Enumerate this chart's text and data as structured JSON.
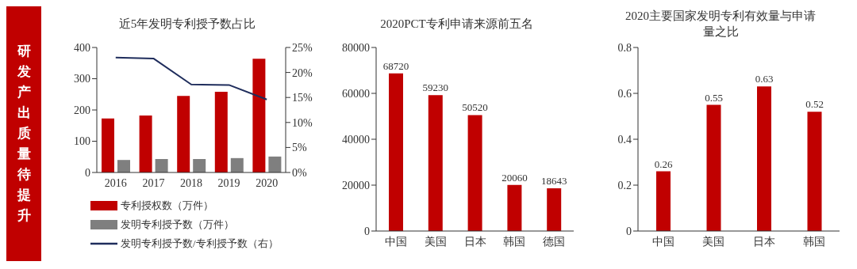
{
  "chart_data": [
    {
      "type": "other",
      "title": "研发产出质量待提升",
      "color": "#c00000"
    },
    {
      "type": "bar",
      "title": "近5年发明专利授予数占比",
      "categories": [
        "2016",
        "2017",
        "2018",
        "2019",
        "2020"
      ],
      "series": [
        {
          "name": "专利授权数（万件）",
          "color": "#c00000",
          "values": [
            173,
            182,
            245,
            258,
            364
          ]
        },
        {
          "name": "发明专利授予数（万件）",
          "color": "#7f7f7f",
          "values": [
            40,
            43,
            43,
            46,
            51
          ]
        },
        {
          "name": "发明专利授予数/专利授予数（右）",
          "type": "line",
          "axis": "y2",
          "color": "#1f2d5c",
          "values": [
            23.0,
            22.8,
            17.6,
            17.5,
            14.6
          ]
        }
      ],
      "ylim": [
        0,
        400
      ],
      "yticks": [
        0,
        100,
        200,
        300,
        400
      ],
      "y2lim": [
        0,
        25
      ],
      "y2ticks": [
        {
          "value": 0,
          "label": "0%"
        },
        {
          "value": 5,
          "label": "5%"
        },
        {
          "value": 10,
          "label": "10%"
        },
        {
          "value": 15,
          "label": "15%"
        },
        {
          "value": 20,
          "label": "20%"
        },
        {
          "value": 25,
          "label": "25%"
        }
      ],
      "legend": "bottom",
      "marker": "none"
    },
    {
      "type": "bar",
      "title": "2020PCT专利申请来源前五名",
      "categories": [
        "中国",
        "美国",
        "日本",
        "韩国",
        "德国"
      ],
      "values": [
        68720,
        59230,
        50520,
        20060,
        18643
      ],
      "color": "#c00000",
      "ylim": [
        0,
        80000
      ],
      "yticks": [
        0,
        20000,
        40000,
        60000,
        80000
      ],
      "data_labels": true
    },
    {
      "type": "bar",
      "title": "2020主要国家发明专利有效量与申请量之比",
      "categories": [
        "中国",
        "美国",
        "日本",
        "韩国"
      ],
      "values": [
        0.26,
        0.55,
        0.63,
        0.52
      ],
      "color": "#c00000",
      "ylim": [
        0,
        0.8
      ],
      "yticks": [
        0,
        0.2,
        0.4,
        0.6,
        0.8
      ],
      "data_labels": true
    }
  ]
}
